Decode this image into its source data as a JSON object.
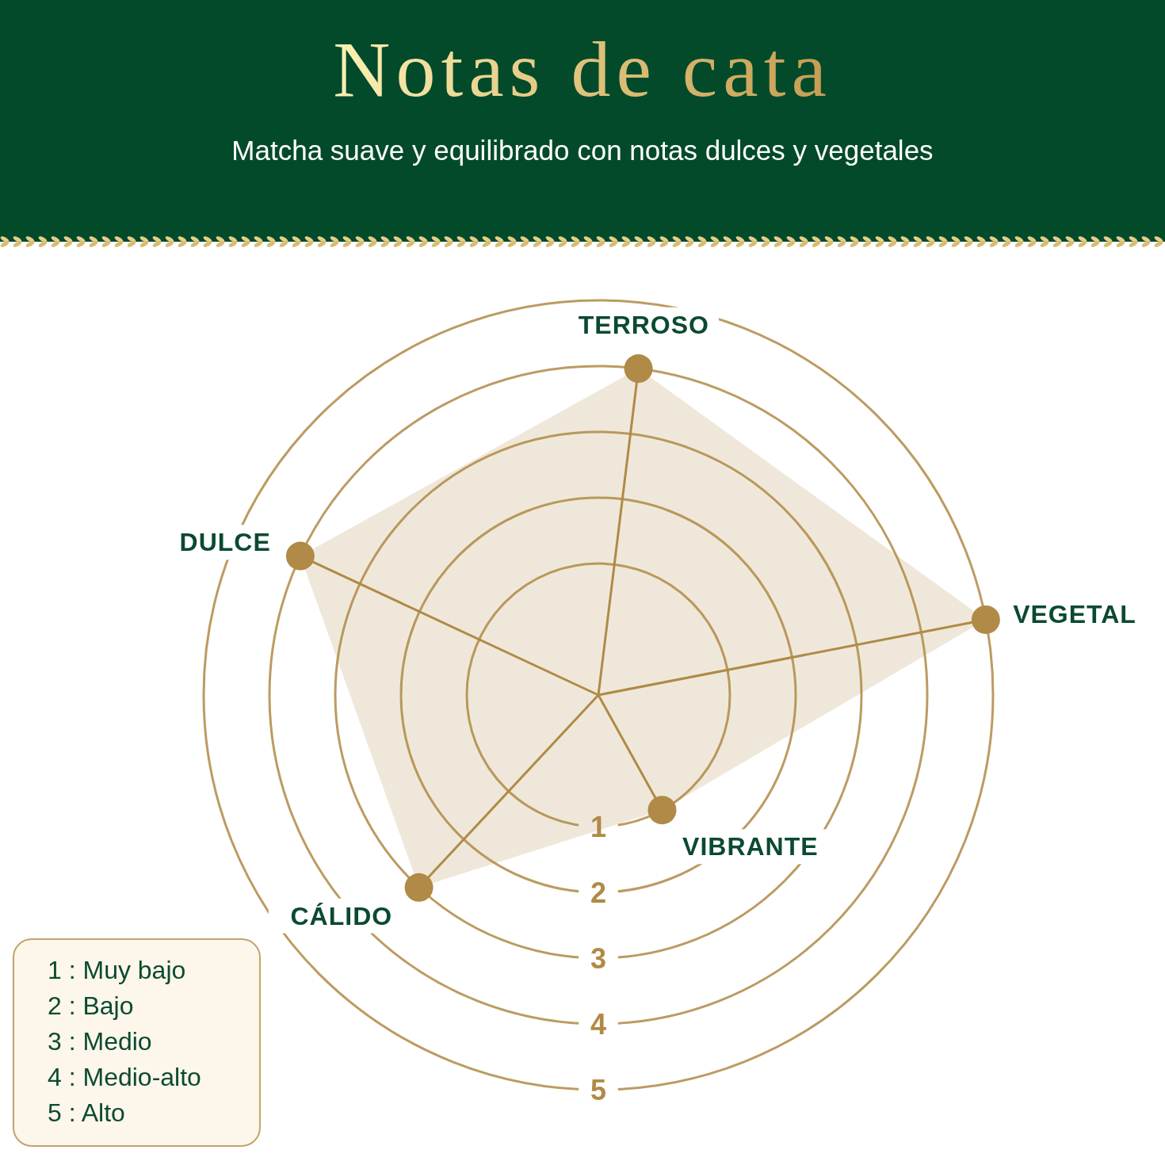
{
  "chart_data": {
    "type": "radar",
    "title": "Notas de cata",
    "subtitle": "Matcha suave y equilibrado con notas dulces y vegetales",
    "categories": [
      "TERROSO",
      "VEGETAL",
      "VIBRANTE",
      "CÁLIDO",
      "DULCE"
    ],
    "values": [
      4,
      5,
      1,
      3,
      4
    ],
    "color": "#b08a46",
    "ylim": [
      -1,
      5
    ],
    "yticks": [
      1,
      2,
      3,
      4,
      5
    ],
    "grid": true,
    "marker": "circle",
    "annotations": [
      "1 : Muy bajo",
      "2 : Bajo",
      "3 : Medio",
      "4 : Medio-alto",
      "5 : Alto"
    ]
  }
}
